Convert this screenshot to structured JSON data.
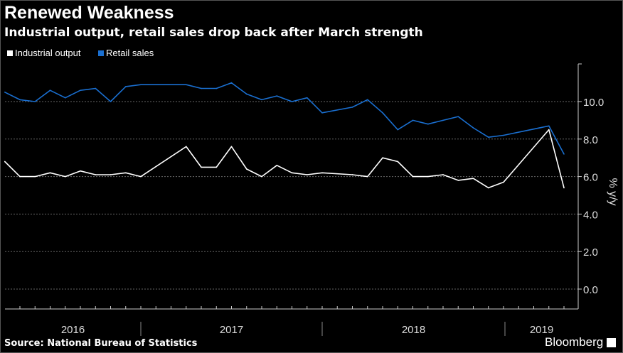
{
  "title": "Renewed Weakness",
  "subtitle": "Industrial output, retail sales drop back after March strength",
  "source": "Source: National Bureau of Statistics",
  "brand": "Bloomberg",
  "chart_data": {
    "type": "line",
    "ylabel": "% y/y",
    "ylim": [
      -1.0,
      12.0
    ],
    "yticks": [
      "0.0",
      "2.0",
      "4.0",
      "6.0",
      "8.0",
      "10.0"
    ],
    "xticks": [
      "2016",
      "2017",
      "2018",
      "2019"
    ],
    "grid": true,
    "legend": "top-left",
    "colors": {
      "Industrial output": "#ffffff",
      "Retail sales": "#1a6fd0"
    },
    "x": [
      "2016-03",
      "2016-04",
      "2016-05",
      "2016-06",
      "2016-07",
      "2016-08",
      "2016-09",
      "2016-10",
      "2016-11",
      "2016-12",
      "2017-03",
      "2017-04",
      "2017-05",
      "2017-06",
      "2017-07",
      "2017-08",
      "2017-09",
      "2017-10",
      "2017-11",
      "2017-12",
      "2018-02",
      "2018-03",
      "2018-04",
      "2018-05",
      "2018-06",
      "2018-07",
      "2018-08",
      "2018-09",
      "2018-10",
      "2018-11",
      "2018-12",
      "2019-03",
      "2019-04"
    ],
    "series": [
      {
        "name": "Industrial output",
        "values": [
          6.8,
          6.0,
          6.0,
          6.2,
          6.0,
          6.3,
          6.1,
          6.1,
          6.2,
          6.0,
          7.6,
          6.5,
          6.5,
          7.6,
          6.4,
          6.0,
          6.6,
          6.2,
          6.1,
          6.2,
          6.1,
          6.0,
          7.0,
          6.8,
          6.0,
          6.0,
          6.1,
          5.8,
          5.9,
          5.4,
          5.7,
          8.5,
          5.4
        ]
      },
      {
        "name": "Retail sales",
        "values": [
          10.5,
          10.1,
          10.0,
          10.6,
          10.2,
          10.6,
          10.7,
          10.0,
          10.8,
          10.9,
          10.9,
          10.7,
          10.7,
          11.0,
          10.4,
          10.1,
          10.3,
          10.0,
          10.2,
          9.4,
          9.7,
          10.1,
          9.4,
          8.5,
          9.0,
          8.8,
          9.0,
          9.2,
          8.6,
          8.1,
          8.2,
          8.7,
          7.2
        ]
      }
    ]
  }
}
